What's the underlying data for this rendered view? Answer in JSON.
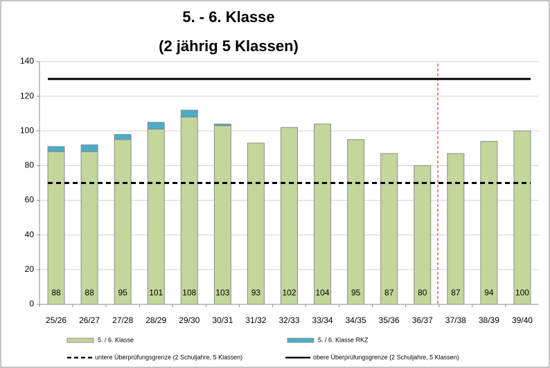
{
  "chart_data": {
    "type": "bar",
    "stacked": true,
    "title": "5. - 6. Klasse",
    "subtitle": "(2 jährig 5 Klassen)",
    "categories": [
      "25/26",
      "26/27",
      "27/28",
      "28/29",
      "29/30",
      "30/31",
      "31/32",
      "32/33",
      "33/34",
      "34/35",
      "35/36",
      "36/37",
      "37/38",
      "38/39",
      "39/40"
    ],
    "series": [
      {
        "name": "5. / 6. Klasse",
        "color": "#c3d69b",
        "values": [
          88,
          88,
          95,
          101,
          108,
          103,
          93,
          102,
          104,
          95,
          87,
          80,
          87,
          94,
          100
        ]
      },
      {
        "name": "5. / 6. Klasse RKZ",
        "color": "#4bacc6",
        "values": [
          3,
          4,
          3,
          4,
          4,
          1,
          0,
          0,
          0,
          0,
          0,
          0,
          0,
          0,
          0
        ]
      }
    ],
    "reference_lines": [
      {
        "name": "untere Überprüfungsgrenze (2 Schuljahre, 5 Klassen)",
        "value": 70,
        "color": "#000000",
        "dashed": true
      },
      {
        "name": "obere Überprüfungsgrenze (2 Schuljahre, 5 Klassen)",
        "value": 130,
        "color": "#000000",
        "dashed": false
      }
    ],
    "ylim": [
      0,
      140
    ],
    "yticks": [
      0,
      20,
      40,
      60,
      80,
      100,
      120,
      140
    ],
    "grid": true
  }
}
